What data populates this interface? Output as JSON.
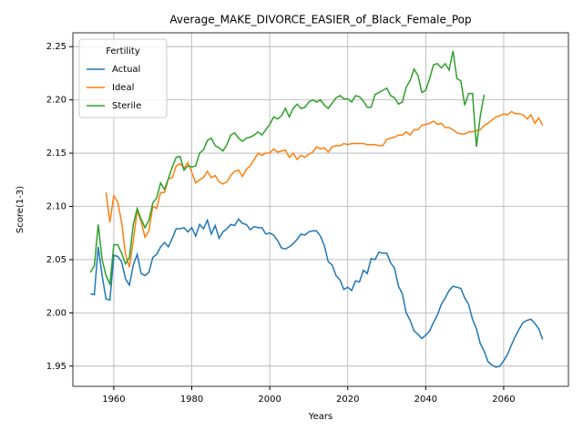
{
  "chart_data": {
    "type": "line",
    "title": "Average_MAKE_DIVORCE_EASIER_of_Black_Female_Pop",
    "xlabel": "Years",
    "ylabel": "Score(1-3)",
    "legend_title": "Fertility",
    "legend": "upper left",
    "grid": true,
    "xlim": [
      1949.5,
      2076.6
    ],
    "xticks": [
      1960,
      1980,
      2000,
      2020,
      2040,
      2060
    ],
    "ylim": [
      1.931,
      2.263
    ],
    "yticks": [
      1.95,
      {
        "value": 2,
        "label": "2.00"
      },
      2.05,
      {
        "value": 2.1,
        "label": "2.10"
      },
      2.15,
      {
        "value": 2.2,
        "label": "2.20"
      },
      2.25
    ],
    "x": [
      1954,
      1955,
      1956,
      1957,
      1958,
      1959,
      1960,
      1961,
      1962,
      1963,
      1964,
      1965,
      1966,
      1967,
      1968,
      1969,
      1970,
      1971,
      1972,
      1973,
      1974,
      1975,
      1976,
      1977,
      1978,
      1979,
      1980,
      1981,
      1982,
      1983,
      1984,
      1985,
      1986,
      1987,
      1988,
      1989,
      1990,
      1991,
      1992,
      1993,
      1994,
      1995,
      1996,
      1997,
      1998,
      1999,
      2000,
      2001,
      2002,
      2003,
      2004,
      2005,
      2006,
      2007,
      2008,
      2009,
      2010,
      2011,
      2012,
      2013,
      2014,
      2015,
      2016,
      2017,
      2018,
      2019,
      2020,
      2021,
      2022,
      2023,
      2024,
      2025,
      2026,
      2027,
      2028,
      2029,
      2030,
      2031,
      2032,
      2033,
      2034,
      2035,
      2036,
      2037,
      2038,
      2039,
      2040,
      2041,
      2042,
      2043,
      2044,
      2045,
      2046,
      2047,
      2048,
      2049,
      2050,
      2051,
      2052,
      2053,
      2054,
      2055,
      2056,
      2057,
      2058,
      2059,
      2060,
      2061,
      2062,
      2063,
      2064,
      2065,
      2066,
      2067,
      2068,
      2069,
      2070
    ],
    "series": [
      {
        "name": "Actual",
        "color": "#1f77b4",
        "values": [
          2.018,
          2.017,
          2.062,
          2.035,
          2.013,
          2.012,
          2.054,
          2.053,
          2.048,
          2.032,
          2.026,
          2.045,
          2.055,
          2.037,
          2.035,
          2.038,
          2.052,
          2.055,
          2.062,
          2.066,
          2.062,
          2.07,
          2.079,
          2.079,
          2.08,
          2.076,
          2.08,
          2.072,
          2.083,
          2.079,
          2.087,
          2.074,
          2.082,
          2.07,
          2.076,
          2.079,
          2.083,
          2.082,
          2.088,
          2.084,
          2.083,
          2.078,
          2.081,
          2.08,
          2.08,
          2.074,
          2.075,
          2.073,
          2.068,
          2.061,
          2.06,
          2.062,
          2.065,
          2.069,
          2.074,
          2.073,
          2.076,
          2.077,
          2.077,
          2.072,
          2.063,
          2.048,
          2.045,
          2.035,
          2.031,
          2.022,
          2.024,
          2.021,
          2.03,
          2.029,
          2.04,
          2.037,
          2.051,
          2.05,
          2.057,
          2.056,
          2.056,
          2.047,
          2.042,
          2.025,
          2.018,
          2.0,
          1.993,
          1.983,
          1.98,
          1.976,
          1.979,
          1.983,
          1.991,
          1.998,
          2.008,
          2.014,
          2.021,
          2.025,
          2.024,
          2.023,
          2.014,
          2.008,
          1.994,
          1.985,
          1.971,
          1.964,
          1.954,
          1.951,
          1.949,
          1.95,
          1.955,
          1.961,
          1.97,
          1.978,
          1.985,
          1.991,
          1.993,
          1.994,
          1.99,
          1.985,
          1.975
        ]
      },
      {
        "name": "Ideal",
        "color": "#ff7f0e",
        "values": [
          null,
          null,
          null,
          null,
          2.113,
          2.085,
          2.11,
          2.104,
          2.085,
          2.055,
          2.043,
          2.068,
          2.096,
          2.086,
          2.071,
          2.077,
          2.1,
          2.098,
          2.113,
          2.113,
          2.126,
          2.127,
          2.138,
          2.14,
          2.136,
          2.141,
          2.132,
          2.122,
          2.125,
          2.127,
          2.133,
          2.127,
          2.129,
          2.123,
          2.121,
          2.123,
          2.129,
          2.133,
          2.134,
          2.128,
          2.135,
          2.138,
          2.144,
          2.15,
          2.148,
          2.15,
          2.15,
          2.154,
          2.151,
          2.152,
          2.153,
          2.146,
          2.15,
          2.144,
          2.148,
          2.146,
          2.149,
          2.151,
          2.156,
          2.154,
          2.155,
          2.151,
          2.156,
          2.157,
          2.157,
          2.159,
          2.158,
          2.159,
          2.159,
          2.159,
          2.159,
          2.158,
          2.158,
          2.158,
          2.157,
          2.157,
          2.163,
          2.164,
          2.165,
          2.167,
          2.167,
          2.17,
          2.167,
          2.172,
          2.172,
          2.176,
          2.177,
          2.178,
          2.18,
          2.177,
          2.178,
          2.174,
          2.174,
          2.172,
          2.169,
          2.168,
          2.168,
          2.17,
          2.17,
          2.171,
          2.172,
          2.176,
          2.178,
          2.181,
          2.184,
          2.185,
          2.187,
          2.186,
          2.189,
          2.187,
          2.187,
          2.186,
          2.182,
          2.186,
          2.178,
          2.183,
          2.176
        ]
      },
      {
        "name": "Sterile",
        "color": "#2ca02c",
        "values": [
          2.038,
          2.044,
          2.083,
          2.05,
          2.035,
          2.027,
          2.064,
          2.064,
          2.056,
          2.046,
          2.052,
          2.083,
          2.098,
          2.088,
          2.08,
          2.087,
          2.103,
          2.108,
          2.122,
          2.116,
          2.126,
          2.137,
          2.146,
          2.147,
          2.134,
          2.138,
          2.137,
          2.138,
          2.15,
          2.153,
          2.162,
          2.164,
          2.157,
          2.155,
          2.152,
          2.158,
          2.167,
          2.169,
          2.164,
          2.161,
          2.164,
          2.165,
          2.167,
          2.17,
          2.167,
          2.172,
          2.177,
          2.184,
          2.182,
          2.185,
          2.192,
          2.184,
          2.192,
          2.196,
          2.192,
          2.193,
          2.198,
          2.2,
          2.198,
          2.2,
          2.195,
          2.192,
          2.197,
          2.202,
          2.204,
          2.201,
          2.201,
          2.198,
          2.204,
          2.203,
          2.199,
          2.193,
          2.193,
          2.205,
          2.207,
          2.209,
          2.211,
          2.204,
          2.202,
          2.196,
          2.198,
          2.212,
          2.218,
          2.229,
          2.223,
          2.207,
          2.209,
          2.22,
          2.233,
          2.234,
          2.23,
          2.234,
          2.228,
          2.246,
          2.22,
          2.218,
          2.195,
          2.206,
          2.206,
          2.156,
          2.185,
          2.205,
          null,
          null,
          null,
          null,
          null,
          null,
          null,
          null,
          null,
          null,
          null,
          null,
          null,
          null,
          null
        ]
      }
    ]
  }
}
